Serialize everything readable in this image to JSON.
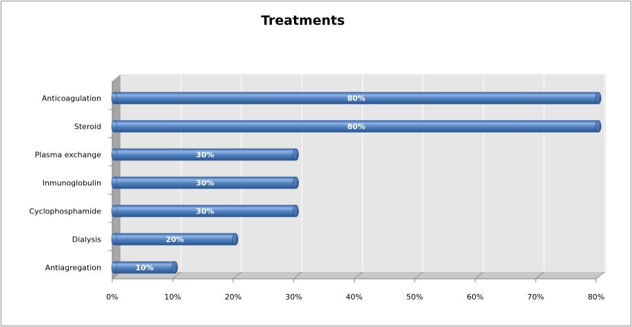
{
  "chart_data": {
    "type": "bar",
    "orientation": "horizontal",
    "title": "Treatments",
    "categories": [
      "Anticoagulation",
      "Steroid",
      "Plasma exchange",
      "Inmunoglobulin",
      "Cyclophosphamide",
      "Dialysis",
      "Antiagregation"
    ],
    "values": [
      80,
      80,
      30,
      30,
      30,
      20,
      10
    ],
    "data_labels": [
      "80%",
      "80%",
      "30%",
      "30%",
      "30%",
      "20%",
      "10%"
    ],
    "xlim": [
      0,
      80
    ],
    "x_ticks": [
      "0%",
      "10%",
      "20%",
      "30%",
      "40%",
      "50%",
      "60%",
      "70%",
      "80%"
    ],
    "xlabel": "",
    "ylabel": "",
    "grid": "vertical",
    "legend": "none",
    "colors": {
      "bar": "#4f81bd",
      "bar_dark": "#2b5591",
      "bar_light": "#8fb3e6",
      "plot_back": "#e6e6e6",
      "wall_side": "#a6a6a6",
      "grid": "#ffffff"
    }
  }
}
